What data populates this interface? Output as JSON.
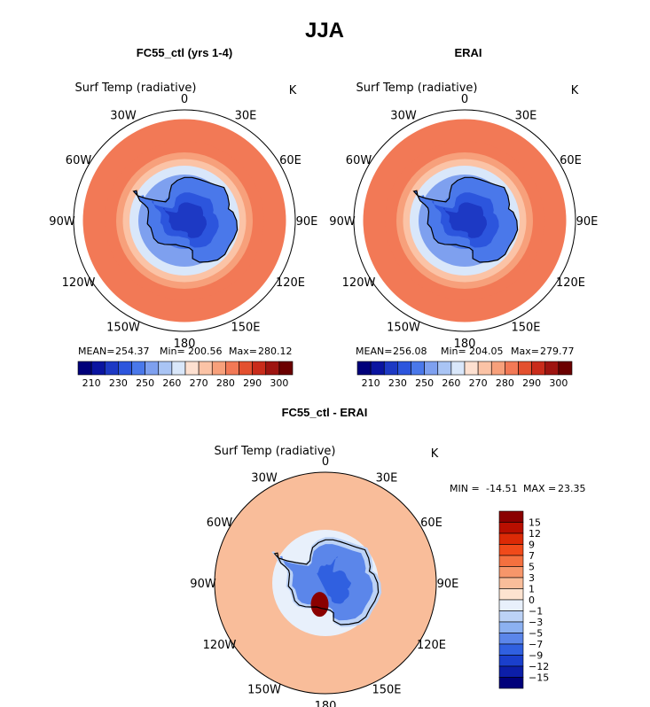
{
  "figure_title": "JJA",
  "chart_data": [
    {
      "type": "heatmap",
      "projection": "south-polar-stereographic",
      "title": "FC55_ctl (yrs 1-4)",
      "variable": "Surf Temp (radiative)",
      "units": "K",
      "stats": {
        "mean_label": "MEAN=",
        "mean": "254.37",
        "min_label": "Min=",
        "min": "200.56",
        "max_label": "Max=",
        "max": "280.12"
      },
      "colorbar_ticks": [
        "210",
        "230",
        "250",
        "260",
        "270",
        "280",
        "290",
        "300"
      ],
      "levels": [
        205,
        210,
        220,
        230,
        240,
        250,
        255,
        260,
        265,
        270,
        275,
        280,
        285,
        290,
        295,
        300
      ],
      "longitude_labels": [
        "0",
        "30E",
        "60E",
        "90E",
        "120E",
        "150E",
        "180",
        "150W",
        "120W",
        "90W",
        "60W",
        "30W"
      ],
      "zonal_bands": [
        {
          "latitude": -45,
          "value": 280
        },
        {
          "latitude": -55,
          "value": 276
        },
        {
          "latitude": -60,
          "value": 272
        },
        {
          "latitude": -63,
          "value": 266
        },
        {
          "latitude": -66,
          "value": 258
        },
        {
          "latitude": -70,
          "value": 248
        },
        {
          "latitude": -78,
          "value": 235
        },
        {
          "latitude": -85,
          "value": 222
        },
        {
          "latitude": -90,
          "value": 210
        }
      ]
    },
    {
      "type": "heatmap",
      "projection": "south-polar-stereographic",
      "title": "ERAI",
      "variable": "Surf Temp (radiative)",
      "units": "K",
      "stats": {
        "mean_label": "MEAN=",
        "mean": "256.08",
        "min_label": "Min=",
        "min": "204.05",
        "max_label": "Max=",
        "max": "279.77"
      },
      "colorbar_ticks": [
        "210",
        "230",
        "250",
        "260",
        "270",
        "280",
        "290",
        "300"
      ],
      "levels": [
        205,
        210,
        220,
        230,
        240,
        250,
        255,
        260,
        265,
        270,
        275,
        280,
        285,
        290,
        295,
        300
      ],
      "longitude_labels": [
        "0",
        "30E",
        "60E",
        "90E",
        "120E",
        "150E",
        "180",
        "150W",
        "120W",
        "90W",
        "60W",
        "30W"
      ],
      "zonal_bands": [
        {
          "latitude": -45,
          "value": 280
        },
        {
          "latitude": -55,
          "value": 276
        },
        {
          "latitude": -60,
          "value": 272
        },
        {
          "latitude": -63,
          "value": 268
        },
        {
          "latitude": -66,
          "value": 260
        },
        {
          "latitude": -70,
          "value": 250
        },
        {
          "latitude": -78,
          "value": 238
        },
        {
          "latitude": -85,
          "value": 225
        },
        {
          "latitude": -90,
          "value": 215
        }
      ]
    },
    {
      "type": "heatmap",
      "projection": "south-polar-stereographic",
      "title": "FC55_ctl - ERAI",
      "variable": "Surf Temp (radiative)",
      "units": "K",
      "stats": {
        "min_label": "MIN =",
        "min": "-14.51",
        "max_label": "MAX =",
        "max": "23.35"
      },
      "colorbar_ticks": [
        "15",
        "12",
        "9",
        "7",
        "5",
        "3",
        "1",
        "0",
        "−1",
        "−3",
        "−5",
        "−7",
        "−9",
        "−12",
        "−15"
      ],
      "longitude_labels": [
        "0",
        "30E",
        "60E",
        "90E",
        "120E",
        "150E",
        "180",
        "150W",
        "120W",
        "90W",
        "60W",
        "30W"
      ],
      "difference_summary": {
        "ocean": 1,
        "coast": -3,
        "interior": -7,
        "east_antarctic_core": -9,
        "ross_ice_shelf_warm_spot": 15
      }
    }
  ],
  "colors": {
    "abs_palette": [
      "#00007a",
      "#0a14a0",
      "#1d39c4",
      "#2c55dd",
      "#4a78ea",
      "#7ea0ef",
      "#a9c4f4",
      "#d9e7fa",
      "#fde0d0",
      "#fbc3a6",
      "#f7a07b",
      "#f27956",
      "#e3502f",
      "#c92c1b",
      "#9e1410",
      "#6b0000"
    ],
    "diff_palette": [
      "#8a0000",
      "#b80f00",
      "#dc2a06",
      "#f04a1a",
      "#f4703f",
      "#f7966a",
      "#f9bd9a",
      "#fde3d0",
      "#e8f0fb",
      "#bcd2f6",
      "#8cb1f1",
      "#5b86ea",
      "#3060e0",
      "#1a3fcc",
      "#0c1ea8",
      "#00007a"
    ],
    "coast": "#000000"
  }
}
